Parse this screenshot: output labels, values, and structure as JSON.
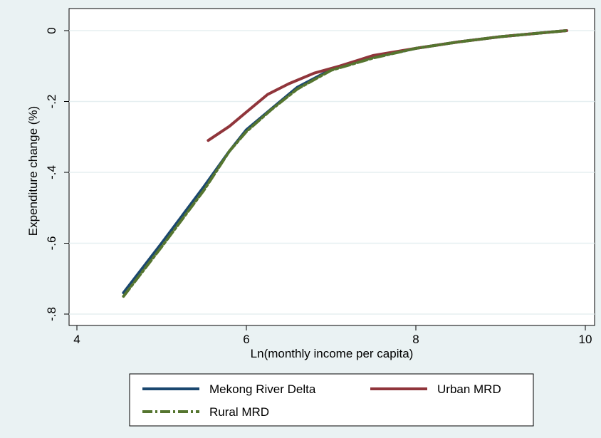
{
  "chart_data": {
    "type": "line",
    "title": "",
    "xlabel": "Ln(monthly income per capita)",
    "ylabel": "Expenditure change (%)",
    "xlim": [
      4,
      10
    ],
    "ylim": [
      -0.8,
      0
    ],
    "x_ticks": [
      4,
      6,
      8,
      10
    ],
    "x_tick_labels": [
      "4",
      "6",
      "8",
      "10"
    ],
    "y_ticks": [
      0,
      -0.2,
      -0.4,
      -0.6,
      -0.8
    ],
    "y_tick_labels": [
      "0",
      "-.2",
      "-.4",
      "-.6",
      "-.8"
    ],
    "grid": true,
    "legend_position": "bottom",
    "series": [
      {
        "name": "Mekong River Delta",
        "color": "#1a476f",
        "dash": "solid",
        "x": [
          4.55,
          5.0,
          5.5,
          5.8,
          6.0,
          6.3,
          6.6,
          7.0,
          7.5,
          8.0,
          8.5,
          9.0,
          9.5,
          9.78
        ],
        "y": [
          -0.74,
          -0.6,
          -0.44,
          -0.34,
          -0.28,
          -0.22,
          -0.16,
          -0.11,
          -0.075,
          -0.05,
          -0.032,
          -0.017,
          -0.006,
          0.0
        ]
      },
      {
        "name": "Urban MRD",
        "color": "#90353b",
        "dash": "solid",
        "x": [
          5.55,
          5.8,
          6.0,
          6.25,
          6.5,
          6.8,
          7.1,
          7.5,
          8.0,
          8.5,
          9.0,
          9.5,
          9.78
        ],
        "y": [
          -0.31,
          -0.27,
          -0.23,
          -0.18,
          -0.15,
          -0.12,
          -0.1,
          -0.07,
          -0.05,
          -0.032,
          -0.017,
          -0.006,
          0.0
        ]
      },
      {
        "name": "Rural MRD",
        "color": "#55752f",
        "dash": "dashdot",
        "x": [
          4.55,
          5.0,
          5.5,
          5.8,
          6.0,
          6.3,
          6.6,
          7.0,
          7.5,
          8.0,
          8.5,
          9.0,
          9.5,
          9.78
        ],
        "y": [
          -0.75,
          -0.61,
          -0.45,
          -0.34,
          -0.285,
          -0.222,
          -0.165,
          -0.112,
          -0.077,
          -0.05,
          -0.032,
          -0.017,
          -0.006,
          0.0
        ]
      }
    ]
  }
}
